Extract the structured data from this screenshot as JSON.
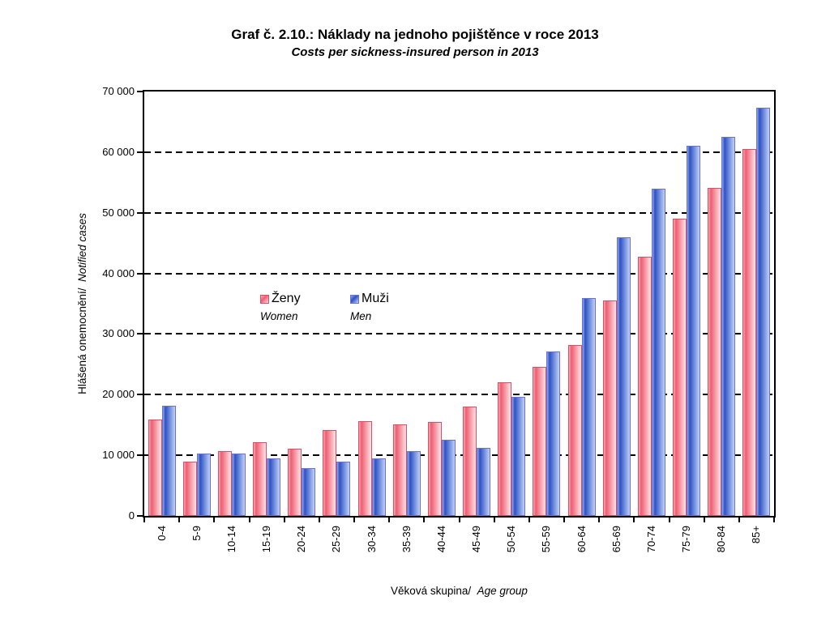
{
  "title": "Graf č. 2.10.: Náklady na jednoho pojištěnce v roce 2013",
  "subtitle": "Costs per sickness-insured person in 2013",
  "y_axis": {
    "label_cz": "Hlášená onemocnění/",
    "label_en": "Notified cases",
    "tick_labels": [
      "0",
      "10 000",
      "20 000",
      "30 000",
      "40 000",
      "50 000",
      "60 000",
      "70 000"
    ]
  },
  "x_axis": {
    "label_cz": "Věková skupina/",
    "label_en": "Age group"
  },
  "legend": {
    "items": [
      {
        "label": "Ženy",
        "sub": "Women",
        "color": "#ee5d72"
      },
      {
        "label": "Muži",
        "sub": "Men",
        "color": "#2e51c5"
      }
    ]
  },
  "chart_data": {
    "type": "bar",
    "title": "Graf č. 2.10.: Náklady na jednoho pojištěnce v roce 2013",
    "subtitle": "Costs per sickness-insured person in 2013",
    "xlabel": "Věková skupina/ Age group",
    "ylabel": "Hlášená onemocnění/ Notified cases",
    "ylim": [
      0,
      70000
    ],
    "ytick_step": 10000,
    "grid": "horizontal-dashed",
    "legend_position": "inside-upper-middle-left",
    "categories": [
      "0-4",
      "5-9",
      "10-14",
      "15-19",
      "20-24",
      "25-29",
      "30-34",
      "35-39",
      "40-44",
      "45-49",
      "50-54",
      "55-59",
      "60-64",
      "65-69",
      "70-74",
      "75-79",
      "80-84",
      "85+"
    ],
    "series": [
      {
        "name": "Ženy",
        "name_en": "Women",
        "key": "zeny",
        "color": "#ee5d72",
        "values": [
          15900,
          8900,
          10700,
          12100,
          11100,
          14100,
          15600,
          15100,
          15500,
          18100,
          22000,
          24600,
          28200,
          35600,
          42700,
          49000,
          54100,
          60500
        ]
      },
      {
        "name": "Muži",
        "name_en": "Men",
        "key": "muzi",
        "color": "#2e51c5",
        "values": [
          18200,
          10300,
          10300,
          9500,
          7900,
          9000,
          9500,
          10700,
          12500,
          11200,
          19700,
          27100,
          36000,
          46000,
          54000,
          61000,
          62500,
          67300
        ]
      }
    ]
  }
}
